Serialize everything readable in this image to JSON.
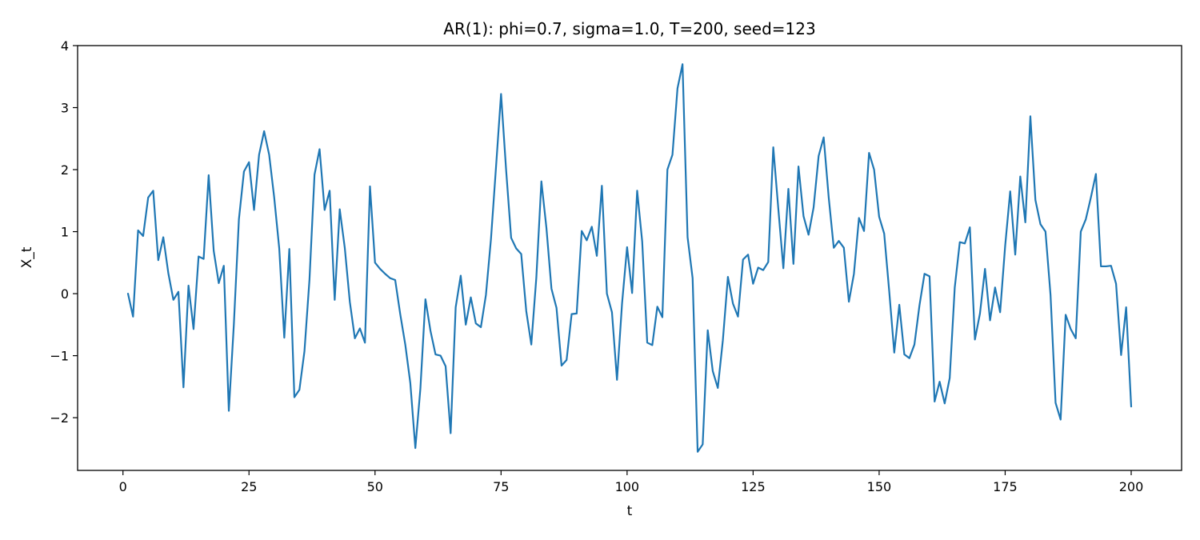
{
  "chart_data": {
    "type": "line",
    "title": "AR(1): phi=0.7, sigma=1.0, T=200, seed=123",
    "xlabel": "t",
    "ylabel": "X_t",
    "xlim": [
      -9,
      210
    ],
    "ylim": [
      -2.85,
      4.0
    ],
    "xticks": [
      0,
      25,
      50,
      75,
      100,
      125,
      150,
      175,
      200
    ],
    "yticks": [
      -2,
      -1,
      0,
      1,
      2,
      3,
      4
    ],
    "ytick_labels": [
      "−2",
      "−1",
      "0",
      "1",
      "2",
      "3",
      "4"
    ],
    "grid": false,
    "legend": "none",
    "series": [
      {
        "color": "#1f77b4",
        "x": [
          1,
          2,
          3,
          4,
          5,
          6,
          7,
          8,
          9,
          10,
          11,
          12,
          13,
          14,
          15,
          16,
          17,
          18,
          19,
          20,
          21,
          22,
          23,
          24,
          25,
          26,
          27,
          28,
          29,
          30,
          31,
          32,
          33,
          34,
          35,
          36,
          37,
          38,
          39,
          40,
          41,
          42,
          43,
          44,
          45,
          46,
          47,
          48,
          49,
          50,
          51,
          52,
          53,
          54,
          55,
          56,
          57,
          58,
          59,
          60,
          61,
          62,
          63,
          64,
          65,
          66,
          67,
          68,
          69,
          70,
          71,
          72,
          73,
          74,
          75,
          76,
          77,
          78,
          79,
          80,
          81,
          82,
          83,
          84,
          85,
          86,
          87,
          88,
          89,
          90,
          91,
          92,
          93,
          94,
          95,
          96,
          97,
          98,
          99,
          100,
          101,
          102,
          103,
          104,
          105,
          106,
          107,
          108,
          109,
          110,
          111,
          112,
          113,
          114,
          115,
          116,
          117,
          118,
          119,
          120,
          121,
          122,
          123,
          124,
          125,
          126,
          127,
          128,
          129,
          130,
          131,
          132,
          133,
          134,
          135,
          136,
          137,
          138,
          139,
          140,
          141,
          142,
          143,
          144,
          145,
          146,
          147,
          148,
          149,
          150,
          151,
          152,
          153,
          154,
          155,
          156,
          157,
          158,
          159,
          160,
          161,
          162,
          163,
          164,
          165,
          166,
          167,
          168,
          169,
          170,
          171,
          172,
          173,
          174,
          175,
          176,
          177,
          178,
          179,
          180,
          181,
          182,
          183,
          184,
          185,
          186,
          187,
          188,
          189,
          190,
          191,
          192,
          193,
          194,
          195,
          196,
          197,
          198,
          199,
          200
        ],
        "values": [
          0.0,
          -0.37,
          1.02,
          0.93,
          1.55,
          1.66,
          0.54,
          0.91,
          0.33,
          -0.1,
          0.03,
          -1.51,
          0.13,
          -0.57,
          0.6,
          0.56,
          1.91,
          0.69,
          0.17,
          0.45,
          -1.89,
          -0.49,
          1.2,
          1.97,
          2.12,
          1.35,
          2.24,
          2.62,
          2.24,
          1.55,
          0.73,
          -0.71,
          0.72,
          -1.67,
          -1.55,
          -0.93,
          0.23,
          1.92,
          2.33,
          1.35,
          1.66,
          -0.1,
          1.36,
          0.74,
          -0.13,
          -0.72,
          -0.56,
          -0.79,
          1.73,
          0.5,
          0.4,
          0.32,
          0.25,
          0.22,
          -0.33,
          -0.82,
          -1.44,
          -2.49,
          -1.53,
          -0.09,
          -0.6,
          -0.98,
          -1.0,
          -1.17,
          -2.25,
          -0.22,
          0.29,
          -0.5,
          -0.06,
          -0.48,
          -0.54,
          -0.02,
          0.88,
          2.04,
          3.22,
          2.0,
          0.9,
          0.73,
          0.64,
          -0.28,
          -0.82,
          0.26,
          1.81,
          1.06,
          0.08,
          -0.23,
          -1.16,
          -1.07,
          -0.33,
          -0.32,
          1.01,
          0.86,
          1.08,
          0.61,
          1.74,
          0.0,
          -0.3,
          -1.39,
          -0.16,
          0.75,
          0.01,
          1.66,
          0.84,
          -0.79,
          -0.83,
          -0.21,
          -0.38,
          2.0,
          2.24,
          3.31,
          3.7,
          0.91,
          0.25,
          -2.55,
          -2.43,
          -0.59,
          -1.25,
          -1.52,
          -0.75,
          0.27,
          -0.16,
          -0.37,
          0.55,
          0.63,
          0.16,
          0.42,
          0.38,
          0.51,
          2.36,
          1.37,
          0.41,
          1.69,
          0.48,
          2.05,
          1.25,
          0.95,
          1.39,
          2.22,
          2.52,
          1.55,
          0.74,
          0.85,
          0.74,
          -0.13,
          0.32,
          1.22,
          1.01,
          2.27,
          2.0,
          1.24,
          0.97,
          0.04,
          -0.95,
          -0.18,
          -0.98,
          -1.04,
          -0.82,
          -0.19,
          0.32,
          0.28,
          -1.74,
          -1.42,
          -1.77,
          -1.36,
          0.1,
          0.83,
          0.81,
          1.07,
          -0.74,
          -0.32,
          0.4,
          -0.43,
          0.1,
          -0.3,
          0.77,
          1.65,
          0.63,
          1.89,
          1.15,
          2.86,
          1.51,
          1.12,
          1.0,
          -0.02,
          -1.76,
          -2.03,
          -0.34,
          -0.57,
          -0.72,
          1.0,
          1.2,
          1.55,
          1.93,
          0.44,
          0.44,
          0.45,
          0.16,
          -0.99,
          -0.22,
          -1.82
        ]
      }
    ]
  }
}
